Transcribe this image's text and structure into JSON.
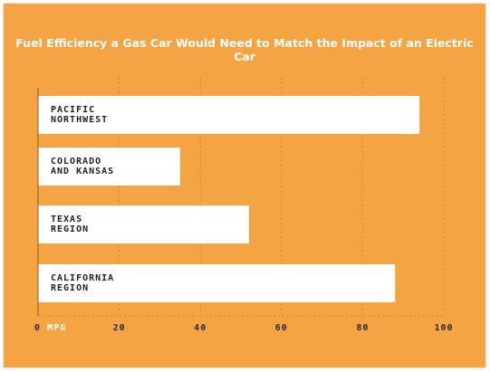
{
  "chart_data": {
    "type": "bar",
    "orientation": "horizontal",
    "title": "Fuel Efficiency a Gas Car Would Need to Match the Impact of an Electric Car",
    "categories": [
      [
        "PACIFIC",
        "NORTHWEST"
      ],
      [
        "COLORADO",
        "AND KANSAS"
      ],
      [
        "TEXAS",
        "REGION"
      ],
      [
        "CALIFORNIA",
        "REGION"
      ]
    ],
    "values": [
      94,
      35,
      52,
      88
    ],
    "xlim": [
      0,
      100
    ],
    "x_ticks": [
      0,
      20,
      40,
      60,
      80,
      100
    ],
    "x_tick_labels": [
      "0",
      "20",
      "40",
      "60",
      "80",
      "100"
    ],
    "x_unit": "MPG",
    "grid": true,
    "colors": {
      "background": "#f5a444",
      "bar": "#ffffff",
      "axis": "#8a5a1e",
      "grid": "#d98a30",
      "title": "#ffffff",
      "label": "#222222",
      "unit": "#ffffff"
    }
  }
}
